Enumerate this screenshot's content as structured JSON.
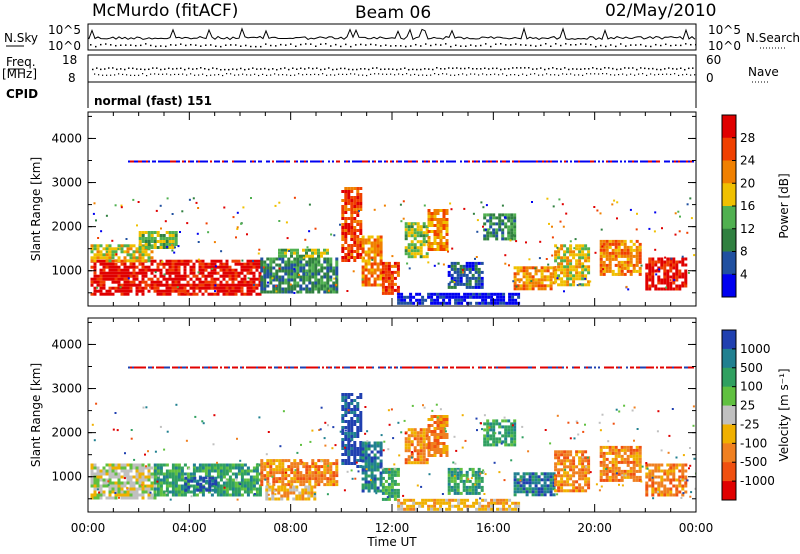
{
  "header": {
    "station": "McMurdo (fitACF)",
    "beam": "Beam 06",
    "date": "02/May/2010"
  },
  "top_panels": {
    "nsky_label": "N.Sky",
    "nsearch_label": "N.Search",
    "count_ticks": [
      "10^5",
      "10^0"
    ],
    "freq_label_1": "Freq.",
    "freq_label_2": "[MHz]",
    "freq_ticks": [
      "18",
      "8"
    ],
    "nave_label": "Nave",
    "nave_ticks": [
      "60",
      "0"
    ],
    "cpid_label": "CPID",
    "cpid_value": "normal (fast) 151"
  },
  "chart_data": [
    {
      "type": "heatmap",
      "panel": "power",
      "ylabel": "Slant Range [km]",
      "xlabel": "",
      "x_ticks": [
        "00:00",
        "04:00",
        "08:00",
        "12:00",
        "16:00",
        "20:00",
        "00:00"
      ],
      "y_ticks": [
        "1000",
        "2000",
        "3000",
        "4000"
      ],
      "ylim": [
        200,
        4600
      ],
      "xlim_hours": [
        0,
        24
      ],
      "colorbar_label": "Power [dB]",
      "colorbar_ticks": [
        "28",
        "24",
        "20",
        "16",
        "12",
        "8",
        "4"
      ],
      "colorbar_colors": [
        "#e00000",
        "#f04000",
        "#f08000",
        "#f0c000",
        "#50b050",
        "#308040",
        "#2050a0",
        "#0000f0"
      ],
      "bands": [
        {
          "t0": 0.1,
          "t1": 6.8,
          "r0": 500,
          "r1": 1250,
          "level": 0
        },
        {
          "t0": 0.1,
          "t1": 2.5,
          "r0": 1250,
          "r1": 1600,
          "level": 3
        },
        {
          "t0": 2.0,
          "t1": 3.5,
          "r0": 1500,
          "r1": 1900,
          "level": 4
        },
        {
          "t0": 6.8,
          "t1": 9.8,
          "r0": 500,
          "r1": 1300,
          "level": 5
        },
        {
          "t0": 7.5,
          "t1": 9.5,
          "r0": 1300,
          "r1": 1500,
          "level": 4
        },
        {
          "t0": 10.0,
          "t1": 10.8,
          "r0": 1200,
          "r1": 2900,
          "level": 1
        },
        {
          "t0": 10.8,
          "t1": 11.6,
          "r0": 700,
          "r1": 1800,
          "level": 2
        },
        {
          "t0": 11.6,
          "t1": 12.2,
          "r0": 500,
          "r1": 1200,
          "level": 1
        },
        {
          "t0": 12.5,
          "t1": 13.4,
          "r0": 1300,
          "r1": 2100,
          "level": 4
        },
        {
          "t0": 13.4,
          "t1": 14.2,
          "r0": 1500,
          "r1": 2400,
          "level": 2
        },
        {
          "t0": 14.2,
          "t1": 15.6,
          "r0": 600,
          "r1": 1200,
          "level": 6
        },
        {
          "t0": 15.6,
          "t1": 16.8,
          "r0": 1700,
          "r1": 2300,
          "level": 5
        },
        {
          "t0": 16.8,
          "t1": 18.4,
          "r0": 600,
          "r1": 1100,
          "level": 2
        },
        {
          "t0": 18.4,
          "t1": 19.8,
          "r0": 700,
          "r1": 1600,
          "level": 3
        },
        {
          "t0": 20.2,
          "t1": 21.8,
          "r0": 900,
          "r1": 1700,
          "level": 2
        },
        {
          "t0": 22.0,
          "t1": 23.6,
          "r0": 600,
          "r1": 1300,
          "level": 0
        },
        {
          "t0": 12.2,
          "t1": 17.0,
          "r0": 250,
          "r1": 500,
          "level": 7
        }
      ],
      "line_range": 3500,
      "line_level": 7
    },
    {
      "type": "heatmap",
      "panel": "velocity",
      "ylabel": "Slant Range [km]",
      "xlabel": "Time UT",
      "x_ticks": [
        "00:00",
        "04:00",
        "08:00",
        "12:00",
        "16:00",
        "20:00",
        "00:00"
      ],
      "y_ticks": [
        "1000",
        "2000",
        "3000",
        "4000"
      ],
      "ylim": [
        200,
        4600
      ],
      "xlim_hours": [
        0,
        24
      ],
      "colorbar_label": "Velocity [m s⁻¹]",
      "colorbar_ticks": [
        "1000",
        "500",
        "100",
        "25",
        "-25",
        "-100",
        "-500",
        "-1000"
      ],
      "colorbar_colors": [
        "#2040b0",
        "#208090",
        "#30a060",
        "#60c040",
        "#c0c0c0",
        "#f0b000",
        "#f08020",
        "#f05010",
        "#e00000"
      ],
      "bands": [
        {
          "t0": 0.1,
          "t1": 2.6,
          "r0": 500,
          "r1": 1300,
          "level": 4
        },
        {
          "t0": 2.6,
          "t1": 6.8,
          "r0": 600,
          "r1": 1300,
          "level": 2
        },
        {
          "t0": 3.8,
          "t1": 5.0,
          "r0": 700,
          "r1": 1000,
          "level": 0
        },
        {
          "t0": 6.8,
          "t1": 9.8,
          "r0": 800,
          "r1": 1400,
          "level": 6
        },
        {
          "t0": 7.0,
          "t1": 9.0,
          "r0": 500,
          "r1": 800,
          "level": 5
        },
        {
          "t0": 10.0,
          "t1": 10.8,
          "r0": 1200,
          "r1": 2900,
          "level": 0
        },
        {
          "t0": 10.8,
          "t1": 11.6,
          "r0": 700,
          "r1": 1800,
          "level": 1
        },
        {
          "t0": 11.6,
          "t1": 12.2,
          "r0": 500,
          "r1": 1200,
          "level": 2
        },
        {
          "t0": 12.5,
          "t1": 13.4,
          "r0": 1300,
          "r1": 2100,
          "level": 6
        },
        {
          "t0": 13.4,
          "t1": 14.2,
          "r0": 1500,
          "r1": 2400,
          "level": 6
        },
        {
          "t0": 14.2,
          "t1": 15.6,
          "r0": 600,
          "r1": 1200,
          "level": 2
        },
        {
          "t0": 15.6,
          "t1": 16.8,
          "r0": 1700,
          "r1": 2300,
          "level": 2
        },
        {
          "t0": 16.8,
          "t1": 18.4,
          "r0": 600,
          "r1": 1100,
          "level": 1
        },
        {
          "t0": 18.4,
          "t1": 19.8,
          "r0": 700,
          "r1": 1600,
          "level": 6
        },
        {
          "t0": 20.2,
          "t1": 21.8,
          "r0": 900,
          "r1": 1700,
          "level": 6
        },
        {
          "t0": 22.0,
          "t1": 23.6,
          "r0": 600,
          "r1": 1300,
          "level": 6
        },
        {
          "t0": 12.2,
          "t1": 17.0,
          "r0": 250,
          "r1": 500,
          "level": 5
        }
      ],
      "line_range": 3500,
      "line_level": 8
    }
  ]
}
